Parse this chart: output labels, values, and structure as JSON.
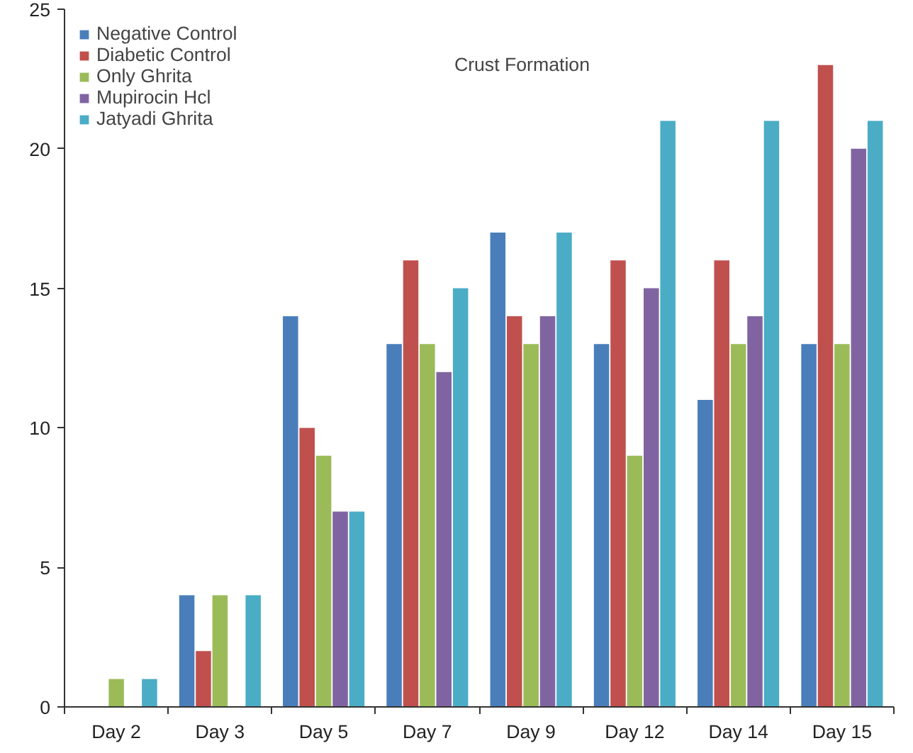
{
  "chart_data": {
    "type": "bar",
    "title": "Crust Formation",
    "categories": [
      "Day 2",
      "Day 3",
      "Day 5",
      "Day 7",
      "Day 9",
      "Day 12",
      "Day 14",
      "Day 15"
    ],
    "series": [
      {
        "name": "Negative Control",
        "color": "#4a7ebb",
        "values": [
          0,
          4,
          14,
          13,
          17,
          13,
          11,
          13
        ]
      },
      {
        "name": "Diabetic Control",
        "color": "#c0504d",
        "values": [
          0,
          2,
          10,
          16,
          14,
          16,
          16,
          23
        ]
      },
      {
        "name": "Only Ghrita",
        "color": "#9bbb59",
        "values": [
          1,
          4,
          9,
          13,
          13,
          9,
          13,
          13
        ]
      },
      {
        "name": "Mupirocin Hcl",
        "color": "#8064a2",
        "values": [
          0,
          0,
          7,
          12,
          14,
          15,
          14,
          20
        ]
      },
      {
        "name": "Jatyadi Ghrita",
        "color": "#4bacc6",
        "values": [
          1,
          4,
          7,
          15,
          17,
          21,
          21,
          21
        ]
      }
    ],
    "ylim": [
      0,
      25
    ],
    "yticks": [
      0,
      5,
      10,
      15,
      20,
      25
    ],
    "grid": false,
    "legend": "top left"
  }
}
